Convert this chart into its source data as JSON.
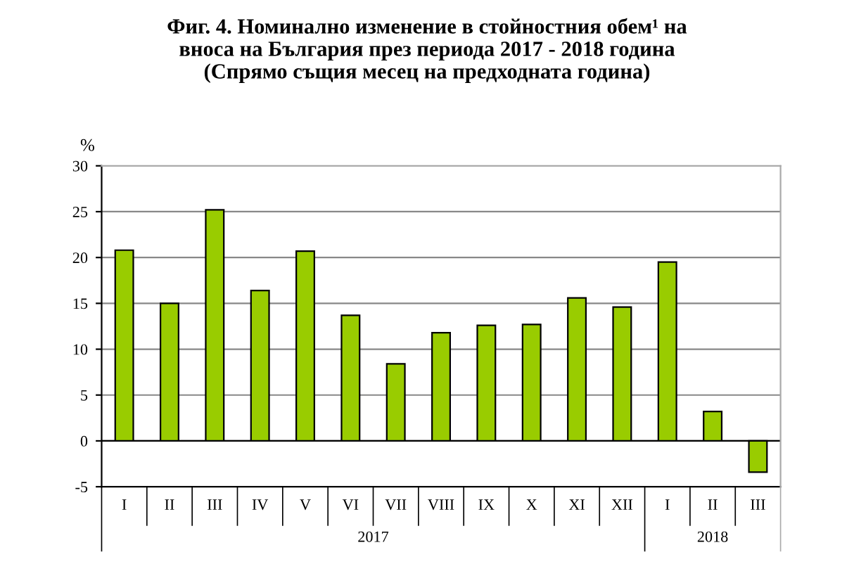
{
  "chart_data": {
    "type": "bar",
    "title": "Фиг. 4. Номинално изменение в стойностния обем¹ на\nвноса на България през периода 2017 - 2018 година\n(Спрямо същия месец на предходната година)",
    "ylabel": "%",
    "categories": [
      "I",
      "II",
      "III",
      "IV",
      "V",
      "VI",
      "VII",
      "VIII",
      "IX",
      "X",
      "XI",
      "XII",
      "I",
      "II",
      "III"
    ],
    "series": [
      {
        "color": "#99cc00",
        "values": [
          20.8,
          15.0,
          25.2,
          16.4,
          20.7,
          13.7,
          8.4,
          11.8,
          12.6,
          12.7,
          15.6,
          14.6,
          19.5,
          3.2,
          -3.4
        ]
      }
    ],
    "annotations": [
      "2017",
      "2018"
    ],
    "ylim": [
      -5,
      30
    ],
    "yticks": [
      -5,
      0,
      5,
      10,
      15,
      20,
      25,
      30
    ],
    "grid": "y"
  }
}
